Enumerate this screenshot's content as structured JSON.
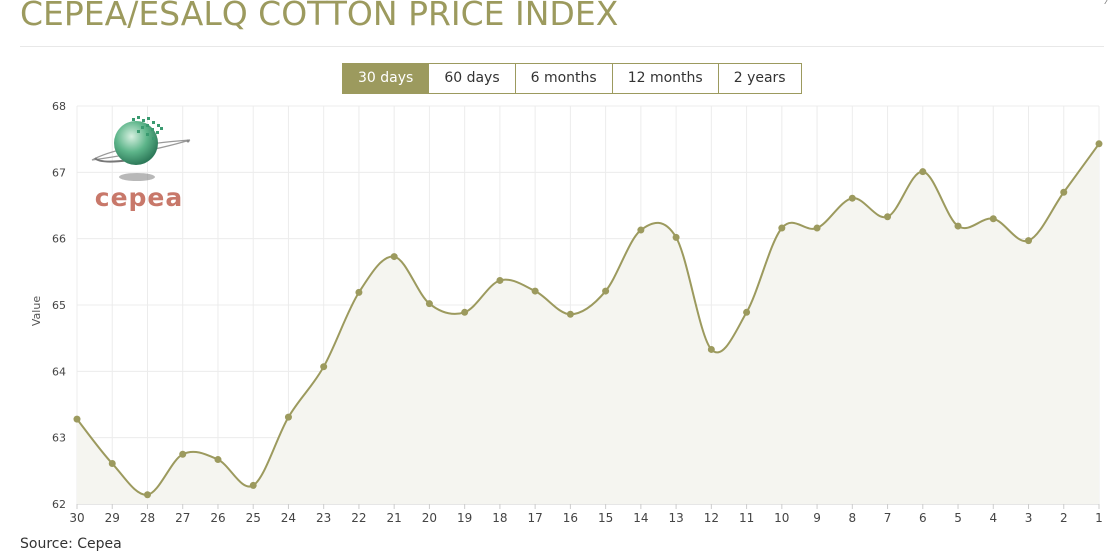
{
  "header": {
    "title": "CEPEA/ESALQ COTTON PRICE INDEX"
  },
  "range_tabs": [
    {
      "label": "30 days",
      "active": true
    },
    {
      "label": "60 days",
      "active": false
    },
    {
      "label": "6 months",
      "active": false
    },
    {
      "label": "12 months",
      "active": false
    },
    {
      "label": "2 years",
      "active": false
    }
  ],
  "logo": {
    "text": "cepea"
  },
  "footer": {
    "source": "Source: Cepea"
  },
  "colors": {
    "accent": "#9c9a5e",
    "line": "#9c9a5e",
    "area": "#f5f5f0",
    "grid": "#ececec",
    "logo_text": "#c8786a"
  },
  "chart_data": {
    "type": "area",
    "ylabel": "Value",
    "xlabel": "",
    "ylim": [
      62,
      68
    ],
    "yticks": [
      62,
      63,
      64,
      65,
      66,
      67,
      68
    ],
    "categories": [
      "30",
      "29",
      "28",
      "27",
      "26",
      "25",
      "24",
      "23",
      "22",
      "21",
      "20",
      "19",
      "18",
      "17",
      "16",
      "15",
      "14",
      "13",
      "12",
      "11",
      "10",
      "9",
      "8",
      "7",
      "6",
      "5",
      "4",
      "3",
      "2",
      "1"
    ],
    "series": [
      {
        "values": [
          63.28,
          62.61,
          62.14,
          62.75,
          62.67,
          62.28,
          63.31,
          64.07,
          65.19,
          65.73,
          65.02,
          64.89,
          65.37,
          65.21,
          64.86,
          65.21,
          66.13,
          66.02,
          64.33,
          64.89,
          66.16,
          66.16,
          66.61,
          66.33,
          67.01,
          66.19,
          66.3,
          65.97,
          66.7,
          67.43
        ]
      }
    ],
    "grid": true,
    "smooth": true
  }
}
